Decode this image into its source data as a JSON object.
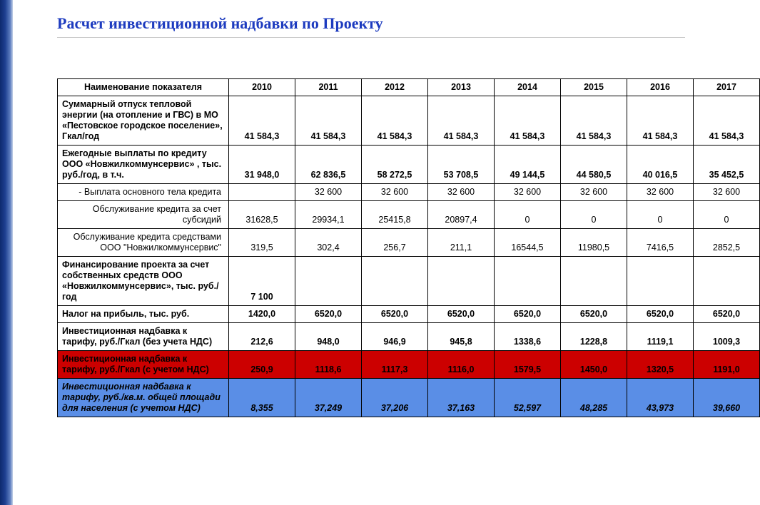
{
  "title": "Расчет инвестиционной надбавки по Проекту",
  "header": {
    "indicator": "Наименование показателя",
    "years": [
      "2010",
      "2011",
      "2012",
      "2013",
      "2014",
      "2015",
      "2016",
      "2017"
    ]
  },
  "rows": [
    {
      "label": "Суммарный отпуск тепловой энергии (на отопление и ГВС) в МО «Пестовское городское поселение», Гкал/год",
      "vals": [
        "41 584,3",
        "41 584,3",
        "41 584,3",
        "41 584,3",
        "41 584,3",
        "41 584,3",
        "41 584,3",
        "41 584,3"
      ],
      "bold": true
    },
    {
      "label": "Ежегодные выплаты по кредиту ООО «Новжилкоммунсервис» , тыс. руб./год, в т.ч.",
      "vals": [
        "31 948,0",
        "62 836,5",
        "58 272,5",
        "53 708,5",
        "49 144,5",
        "44 580,5",
        "40 016,5",
        "35 452,5"
      ],
      "bold": true
    },
    {
      "label": "- Выплата основного тела кредита",
      "sub": true,
      "vals": [
        "",
        "32 600",
        "32 600",
        "32 600",
        "32 600",
        "32 600",
        "32 600",
        "32 600"
      ],
      "bold": false
    },
    {
      "label": "Обслуживание кредита за счет субсидий",
      "sub": true,
      "vals": [
        "31628,5",
        "29934,1",
        "25415,8",
        "20897,4",
        "0",
        "0",
        "0",
        "0"
      ],
      "bold": false
    },
    {
      "label": "Обслуживание кредита средствами ООО \"Новжилкоммунсервис\"",
      "sub": true,
      "vals": [
        "319,5",
        "302,4",
        "256,7",
        "211,1",
        "16544,5",
        "11980,5",
        "7416,5",
        "2852,5"
      ],
      "bold": false
    },
    {
      "label": "Финансирование проекта за счет собственных средств ООО «Новжилкоммунсервис», тыс. руб./год",
      "vals": [
        "7 100",
        "",
        "",
        "",
        "",
        "",
        "",
        ""
      ],
      "bold": true
    },
    {
      "label": "Налог на прибыль, тыс. руб.",
      "vals": [
        "1420,0",
        "6520,0",
        "6520,0",
        "6520,0",
        "6520,0",
        "6520,0",
        "6520,0",
        "6520,0"
      ],
      "bold": true
    },
    {
      "label": "Инвестиционная надбавка к тарифу, руб./Гкал (без учета НДС)",
      "vals": [
        "212,6",
        "948,0",
        "946,9",
        "945,8",
        "1338,6",
        "1228,8",
        "1119,1",
        "1009,3"
      ],
      "bold": true
    },
    {
      "label": "Инвестиционная надбавка к тарифу, руб./Гкал (с учетом НДС)",
      "vals": [
        "250,9",
        "1118,6",
        "1117,3",
        "1116,0",
        "1579,5",
        "1450,0",
        "1320,5",
        "1191,0"
      ],
      "bold": true,
      "row_color": "red"
    },
    {
      "label": "Инвестиционная надбавка к тарифу, руб./кв.м. общей площади для населения (с учетом НДС)",
      "vals": [
        "8,355",
        "37,249",
        "37,206",
        "37,163",
        "52,597",
        "48,285",
        "43,973",
        "39,660"
      ],
      "bold": true,
      "italic": true,
      "row_color": "blue"
    }
  ],
  "colors": {
    "title": "#1d3bbf",
    "red_row_bg": "#cc0000",
    "blue_row_bg": "#5a8ee6",
    "border": "#000000",
    "rule": "#c8c8c8"
  },
  "font_sizes": {
    "title": 22,
    "cell": 12.5
  }
}
